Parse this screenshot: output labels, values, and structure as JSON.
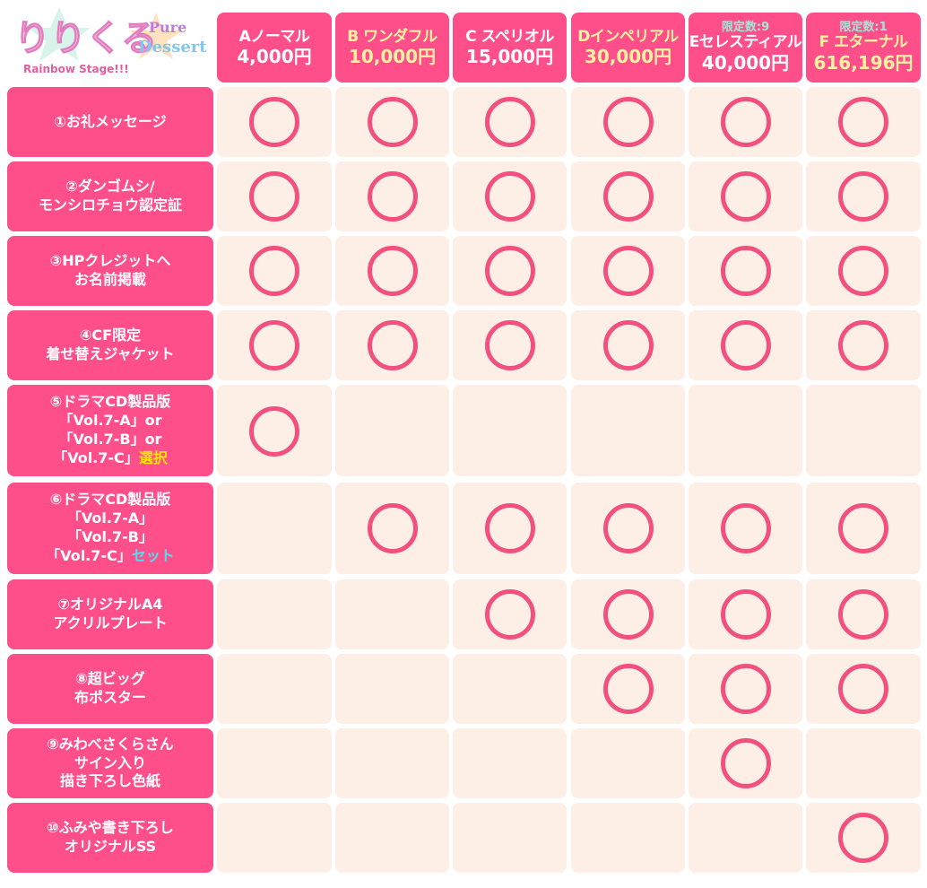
{
  "logo": {
    "text": "りりくる Pure Dessert Rainbow Stage!!!"
  },
  "columns": [
    {
      "name": "Aノーマル",
      "price": "4,000円",
      "limit": "",
      "color": "#ffffff"
    },
    {
      "name": "B ワンダフル",
      "price": "10,000円",
      "limit": "",
      "color": "#fff2a0"
    },
    {
      "name": "C スペリオル",
      "price": "15,000円",
      "limit": "",
      "color": "#ffffff"
    },
    {
      "name": "Dインペリアル",
      "price": "30,000円",
      "limit": "",
      "color": "#fff2a0"
    },
    {
      "name": "Eセレスティアル",
      "price": "40,000円",
      "limit": "限定数:9",
      "color": "#ffffff"
    },
    {
      "name": "F エターナル",
      "price": "616,196円",
      "limit": "限定数:1",
      "color": "#fff2a0"
    }
  ],
  "rows": [
    {
      "lines": [
        "①お礼メッセージ"
      ],
      "included": [
        true,
        true,
        true,
        true,
        true,
        true
      ]
    },
    {
      "lines": [
        "②ダンゴムシ/",
        "モンシロチョウ認定証"
      ],
      "included": [
        true,
        true,
        true,
        true,
        true,
        true
      ]
    },
    {
      "lines": [
        "③HPクレジットへ",
        "お名前掲載"
      ],
      "included": [
        true,
        true,
        true,
        true,
        true,
        true
      ]
    },
    {
      "lines": [
        "④CF限定",
        "着せ替えジャケット"
      ],
      "included": [
        true,
        true,
        true,
        true,
        true,
        true
      ]
    },
    {
      "lines": [
        "⑤ドラマCD製品版",
        "「Vol.7-A」or",
        "「Vol.7-B」or",
        "「Vol.7-C」"
      ],
      "highlight": "選択",
      "highlight_color": "#ffe600",
      "included": [
        true,
        false,
        false,
        false,
        false,
        false
      ]
    },
    {
      "lines": [
        "⑥ドラマCD製品版",
        "「Vol.7-A」",
        "「Vol.7-B」",
        "「Vol.7-C」"
      ],
      "highlight": "セット",
      "highlight_color": "#4fe0f0",
      "included": [
        false,
        true,
        true,
        true,
        true,
        true
      ]
    },
    {
      "lines": [
        "⑦オリジナルA4",
        "アクリルプレート"
      ],
      "included": [
        false,
        false,
        true,
        true,
        true,
        true
      ]
    },
    {
      "lines": [
        "⑧超ビッグ",
        "布ポスター"
      ],
      "included": [
        false,
        false,
        false,
        true,
        true,
        true
      ]
    },
    {
      "lines": [
        "⑨みわべさくらさん",
        "サイン入り",
        "描き下ろし色紙"
      ],
      "included": [
        false,
        false,
        false,
        false,
        true,
        false
      ]
    },
    {
      "lines": [
        "⑩ふみや書き下ろし",
        "オリジナルSS"
      ],
      "included": [
        false,
        false,
        false,
        false,
        false,
        true
      ]
    }
  ],
  "colors": {
    "pink": "#ff4f8b",
    "cell": "#fdeee6",
    "ring": "#f2507f"
  }
}
